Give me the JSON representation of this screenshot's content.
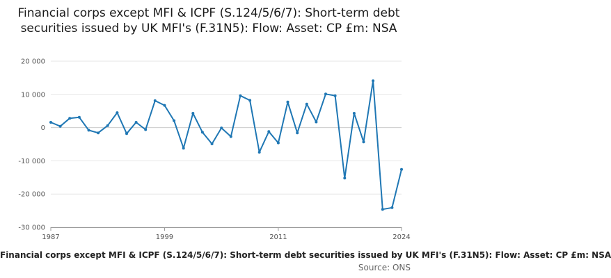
{
  "chart_data": {
    "type": "line",
    "title": "Financial corps except MFI & ICPF (S.124/5/6/7): Short-term debt securities issued by UK MFI's (F.31N5): Flow: Asset: CP £m: NSA",
    "xlabel": "",
    "ylabel": "",
    "x_tick_labels": [
      "1987",
      "1999",
      "2011",
      "2024"
    ],
    "y_tick_labels": [
      "20 000",
      "10 000",
      "0",
      "-10 000",
      "-20 000",
      "-30 000"
    ],
    "y_ticks": [
      20000,
      10000,
      0,
      -10000,
      -20000,
      -30000
    ],
    "ylim": [
      -30000,
      20000
    ],
    "x_range": [
      1987,
      2024
    ],
    "grid": true,
    "line_color": "#1f77b4",
    "series": [
      {
        "x": [
          1987,
          1988,
          1989,
          1990,
          1991,
          1992,
          1993,
          1994,
          1995,
          1996,
          1997,
          1998,
          1999,
          2000,
          2001,
          2002,
          2003,
          2004,
          2005,
          2006,
          2007,
          2008,
          2009,
          2010,
          2011,
          2012,
          2013,
          2014,
          2015,
          2016,
          2017,
          2018,
          2019,
          2020,
          2021,
          2022,
          2023,
          2024
        ],
        "values": [
          1600,
          400,
          2800,
          3100,
          -800,
          -1600,
          600,
          4500,
          -1800,
          1600,
          -600,
          8100,
          6700,
          2100,
          -6200,
          4300,
          -1400,
          -4900,
          -100,
          -2700,
          9600,
          8200,
          -7400,
          -1200,
          -4600,
          7700,
          -1600,
          7100,
          1700,
          10100,
          9600,
          -15200,
          4300,
          -4300,
          14100,
          -24600,
          -24100,
          -12600
        ]
      }
    ]
  },
  "footer": {
    "text": "Financial corps except MFI & ICPF (S.124/5/6/7): Short-term debt securities issued by UK MFI's (F.31N5): Flow: Asset: CP £m: NSA",
    "source": "Source: ONS"
  }
}
